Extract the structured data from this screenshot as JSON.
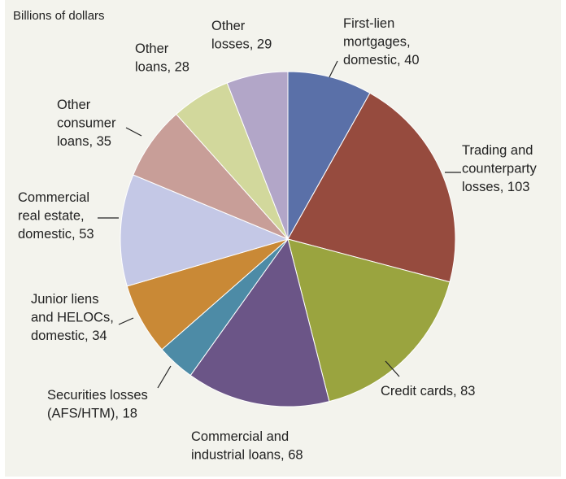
{
  "chart_data": {
    "type": "pie",
    "unit_label": "Billions of dollars",
    "start": "12 o'clock",
    "direction": "clockwise",
    "slices": [
      {
        "lines": [
          "First-lien",
          "mortgages,",
          "domestic, 40"
        ],
        "value": 40,
        "color": "#5a70a8"
      },
      {
        "lines": [
          "Trading and",
          "counterparty",
          "losses, 103"
        ],
        "value": 103,
        "color": "#964b3e"
      },
      {
        "lines": [
          "Credit cards, 83"
        ],
        "value": 83,
        "color": "#9aa43f"
      },
      {
        "lines": [
          "Commercial and",
          "industrial loans, 68"
        ],
        "value": 68,
        "color": "#6b5587"
      },
      {
        "lines": [
          "Securities losses",
          "(AFS/HTM), 18"
        ],
        "value": 18,
        "color": "#4d8ba6"
      },
      {
        "lines": [
          "Junior liens",
          "and HELOCs,",
          "domestic, 34"
        ],
        "value": 34,
        "color": "#c98936"
      },
      {
        "lines": [
          "Commercial",
          "real estate,",
          "domestic, 53"
        ],
        "value": 53,
        "color": "#c4c8e6"
      },
      {
        "lines": [
          "Other",
          "consumer",
          "loans, 35"
        ],
        "value": 35,
        "color": "#c89e98"
      },
      {
        "lines": [
          "Other",
          "loans, 28"
        ],
        "value": 28,
        "color": "#d2d89c"
      },
      {
        "lines": [
          "Other",
          "losses, 29"
        ],
        "value": 29,
        "color": "#b2a6c8"
      }
    ]
  }
}
